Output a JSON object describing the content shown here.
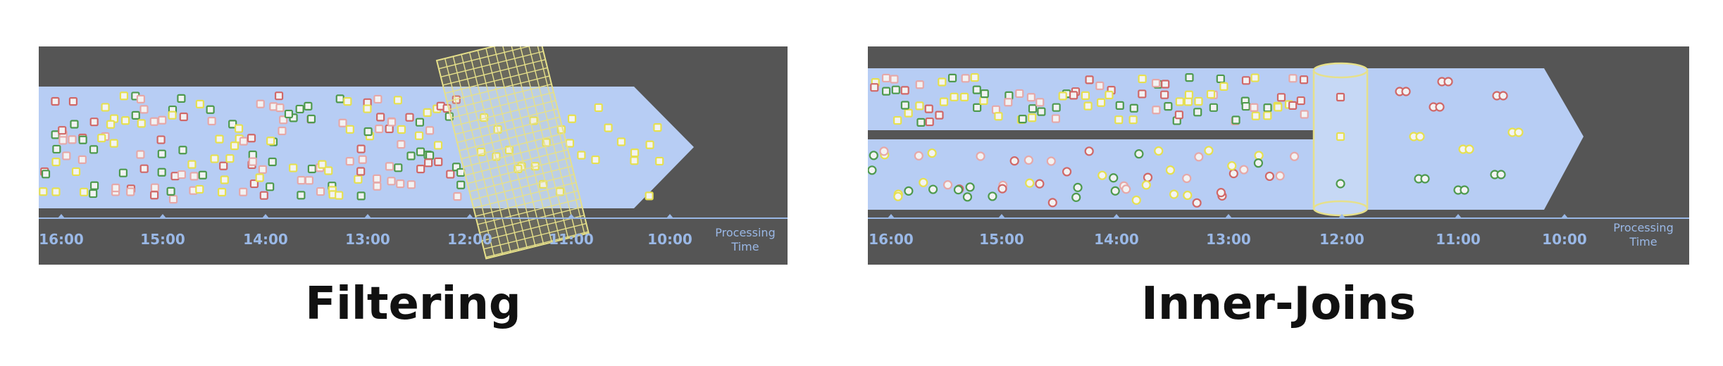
{
  "colors": {
    "background": "#555555",
    "stream": "#b7cdf4",
    "axis": "#9ab8e6",
    "filter_grid": "#e6e08a",
    "join_cylinder": "#c6d8f5",
    "event_yellow": "#e6e050",
    "event_red": "#d06868",
    "event_green": "#4e9a4e",
    "event_pink": "#e6a8a8"
  },
  "filtering": {
    "caption": "Filtering",
    "axis_label_line1": "Processing",
    "axis_label_line2": "Time",
    "ticks": [
      "16:00",
      "15:00",
      "14:00",
      "13:00",
      "12:00",
      "11:00",
      "10:00"
    ],
    "shape": "square",
    "operator": "filter-grid"
  },
  "inner_joins": {
    "caption": "Inner-Joins",
    "axis_label_line1": "Processing",
    "axis_label_line2": "Time",
    "ticks": [
      "16:00",
      "15:00",
      "14:00",
      "13:00",
      "12:00",
      "11:00",
      "10:00"
    ],
    "shapes": [
      "square",
      "circle"
    ],
    "operator": "join-cylinder",
    "joined_pair_colors": [
      "red",
      "red",
      "yellow",
      "yellow",
      "green",
      "green"
    ]
  }
}
